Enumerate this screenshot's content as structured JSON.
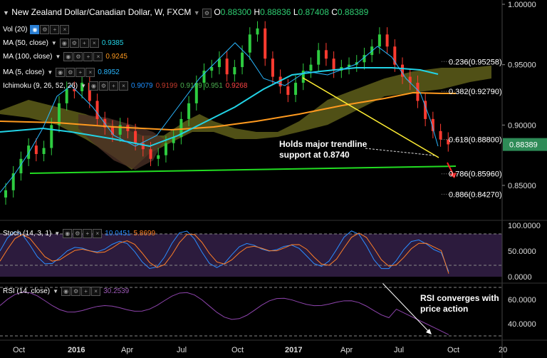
{
  "header": {
    "symbol": "New Zealand Dollar/Canadian Dollar, W, FXCM",
    "o_label": "O",
    "o_value": "0.88300",
    "h_label": "H",
    "h_value": "0.88836",
    "l_label": "L",
    "l_value": "0.87408",
    "c_label": "C",
    "c_value": "0.88389"
  },
  "indicators": {
    "vol": {
      "label": "Vol (20)"
    },
    "ma50": {
      "label": "MA (50, close)",
      "value": "0.9385",
      "color": "#22d3e6"
    },
    "ma100": {
      "label": "MA (100, close)",
      "value": "0.9245",
      "color": "#ff9a1f"
    },
    "ma5": {
      "label": "MA (5, close)",
      "value": "0.8952",
      "color": "#2ab7ff"
    },
    "ichimoku": {
      "label": "Ichimoku (9, 26, 52, 26)",
      "values": [
        "0.9079",
        "0.9199",
        "0.9139",
        "0.951",
        "0.9268"
      ],
      "colors": [
        "#1e90ff",
        "#c0392b",
        "#4caf50",
        "#4caf50",
        "#ff4444"
      ]
    },
    "stoch": {
      "label": "Stoch (14, 3, 1)",
      "k": "10.0451",
      "d": "5.8699"
    },
    "rsi": {
      "label": "RSI (14, close)",
      "value": "30.2539"
    }
  },
  "price_axis": [
    "1.00000",
    "0.95000",
    "0.90000",
    "0.85000"
  ],
  "last_price": "0.88389",
  "fib_levels": [
    {
      "label": "0.236(0.95258)",
      "price": 0.95258
    },
    {
      "label": "0.382(0.92790)",
      "price": 0.9279
    },
    {
      "label": "0.618(0.88800)",
      "price": 0.888
    },
    {
      "label": "0.786(0.85960)",
      "price": 0.8596
    },
    {
      "label": "0.886(0.84270)",
      "price": 0.8427
    }
  ],
  "annotations": {
    "trendline_text_1": "Holds major trendline",
    "trendline_text_2": "support at 0.8740",
    "rsi_text_1": "RSI converges with",
    "rsi_text_2": "price action"
  },
  "stoch_axis": [
    "100.0000",
    "50.0000",
    "0.0000"
  ],
  "rsi_axis": [
    "60.0000",
    "40.0000"
  ],
  "x_axis": [
    "Oct",
    "2016",
    "Apr",
    "Jul",
    "Oct",
    "2017",
    "Apr",
    "Jul",
    "Oct",
    "20"
  ],
  "chart_data": {
    "type": "line",
    "title": "New Zealand Dollar/Canadian Dollar, W, FXCM",
    "ylim": [
      0.82,
      1.0
    ],
    "close_series": [
      0.846,
      0.86,
      0.872,
      0.883,
      0.876,
      0.881,
      0.9,
      0.918,
      0.93,
      0.928,
      0.935,
      0.92,
      0.905,
      0.898,
      0.892,
      0.9,
      0.895,
      0.885,
      0.88,
      0.872,
      0.875,
      0.885,
      0.89,
      0.905,
      0.918,
      0.935,
      0.945,
      0.948,
      0.955,
      0.942,
      0.948,
      0.96,
      0.975,
      0.98,
      0.955,
      0.94,
      0.932,
      0.925,
      0.935,
      0.945,
      0.95,
      0.962,
      0.955,
      0.945,
      0.948,
      0.95,
      0.952,
      0.958,
      0.965,
      0.975,
      0.965,
      0.95,
      0.94,
      0.935,
      0.92,
      0.905,
      0.895,
      0.888,
      0.884
    ]
  }
}
